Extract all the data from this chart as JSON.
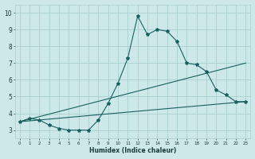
{
  "xlabel": "Humidex (Indice chaleur)",
  "xlim": [
    -0.5,
    23.5
  ],
  "ylim": [
    2.5,
    10.5
  ],
  "xticks": [
    0,
    1,
    2,
    3,
    4,
    5,
    6,
    7,
    8,
    9,
    10,
    11,
    12,
    13,
    14,
    15,
    16,
    17,
    18,
    19,
    20,
    21,
    22,
    23
  ],
  "yticks": [
    3,
    4,
    5,
    6,
    7,
    8,
    9,
    10
  ],
  "bg_color": "#cce8e8",
  "grid_color": "#aacfcf",
  "line_color": "#1a6060",
  "line1_x": [
    0,
    1,
    2,
    3,
    4,
    5,
    6,
    7,
    8,
    9,
    10,
    11,
    12,
    13,
    14,
    15,
    16,
    17,
    18,
    19,
    20,
    21,
    22,
    23
  ],
  "line1_y": [
    3.5,
    3.7,
    3.6,
    3.3,
    3.1,
    3.0,
    3.0,
    3.0,
    3.6,
    4.6,
    5.8,
    7.3,
    9.8,
    8.7,
    9.0,
    8.9,
    8.3,
    7.0,
    6.9,
    6.5,
    5.4,
    5.1,
    4.7,
    4.7
  ],
  "line2_x": [
    0,
    23
  ],
  "line2_y": [
    3.5,
    7.0
  ],
  "line3_x": [
    0,
    23
  ],
  "line3_y": [
    3.5,
    4.7
  ]
}
